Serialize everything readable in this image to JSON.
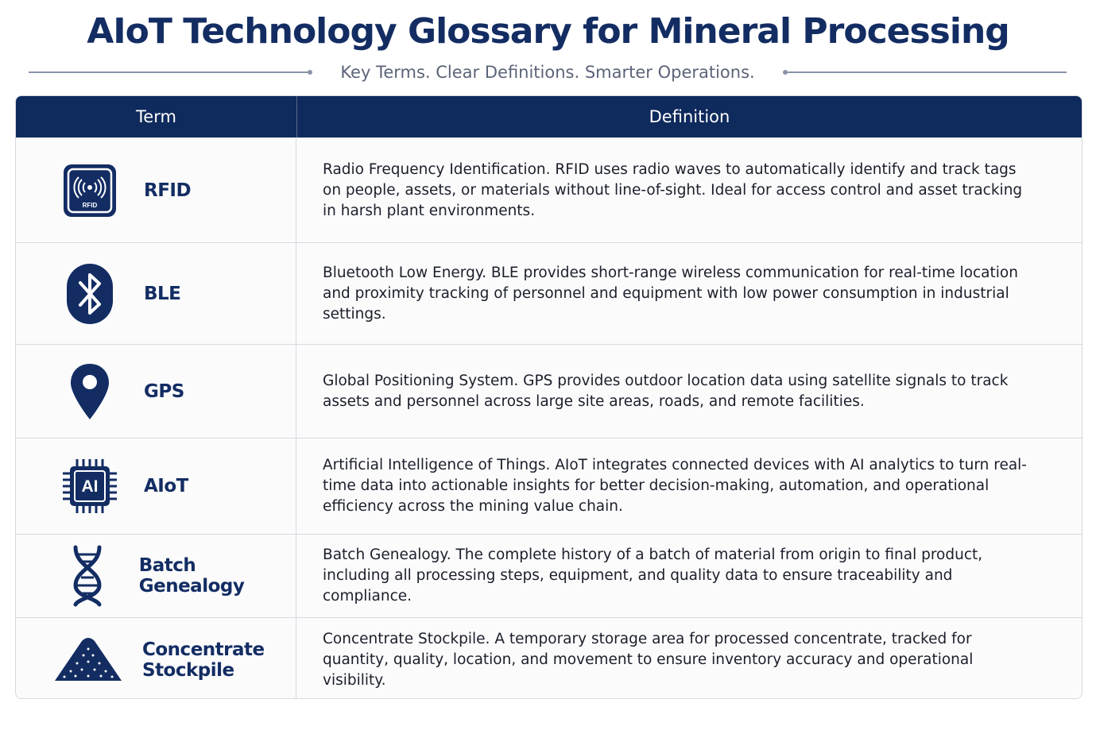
{
  "header": {
    "title": "AIoT Technology Glossary for Mineral Processing",
    "subtitle": "Key Terms. Clear Definitions. Smarter Operations."
  },
  "table": {
    "columns": [
      "Term",
      "Definition"
    ],
    "rows": [
      {
        "term": "RFID",
        "icon": "rfid-tag-icon",
        "icon_text": "RFID",
        "definition": "Radio Frequency Identification. RFID uses radio waves to automatically identify and track tags on people, assets, or materials without line-of-sight. Ideal for access control and asset tracking in harsh plant environments."
      },
      {
        "term": "BLE",
        "icon": "bluetooth-icon",
        "definition": "Bluetooth Low Energy. BLE provides short-range wireless communication for real-time location and proximity tracking of personnel and equipment with low power consumption in industrial settings."
      },
      {
        "term": "GPS",
        "icon": "location-pin-icon",
        "definition": "Global Positioning System. GPS provides outdoor location data using satellite signals to track assets and personnel across large site areas, roads, and remote facilities."
      },
      {
        "term": "AIoT",
        "icon": "ai-chip-icon",
        "icon_text": "AI",
        "definition": "Artificial Intelligence of Things. AIoT integrates connected devices with AI analytics to turn real-time data into actionable insights for better decision-making, automation, and operational efficiency across the mining value chain."
      },
      {
        "term": "Batch Genealogy",
        "icon": "dna-icon",
        "definition": "Batch Genealogy. The complete history of a batch of material from origin to final product, including all processing steps, equipment, and quality data to ensure traceability and compliance."
      },
      {
        "term": "Concentrate Stockpile",
        "icon": "stockpile-icon",
        "definition": "Concentrate Stockpile. A temporary storage area for processed concentrate, tracked for quantity, quality, location, and movement to ensure inventory accuracy and operational visibility."
      }
    ]
  },
  "colors": {
    "navy": "#0f2a5c",
    "title": "#132d63",
    "border": "#d5d9e1"
  }
}
